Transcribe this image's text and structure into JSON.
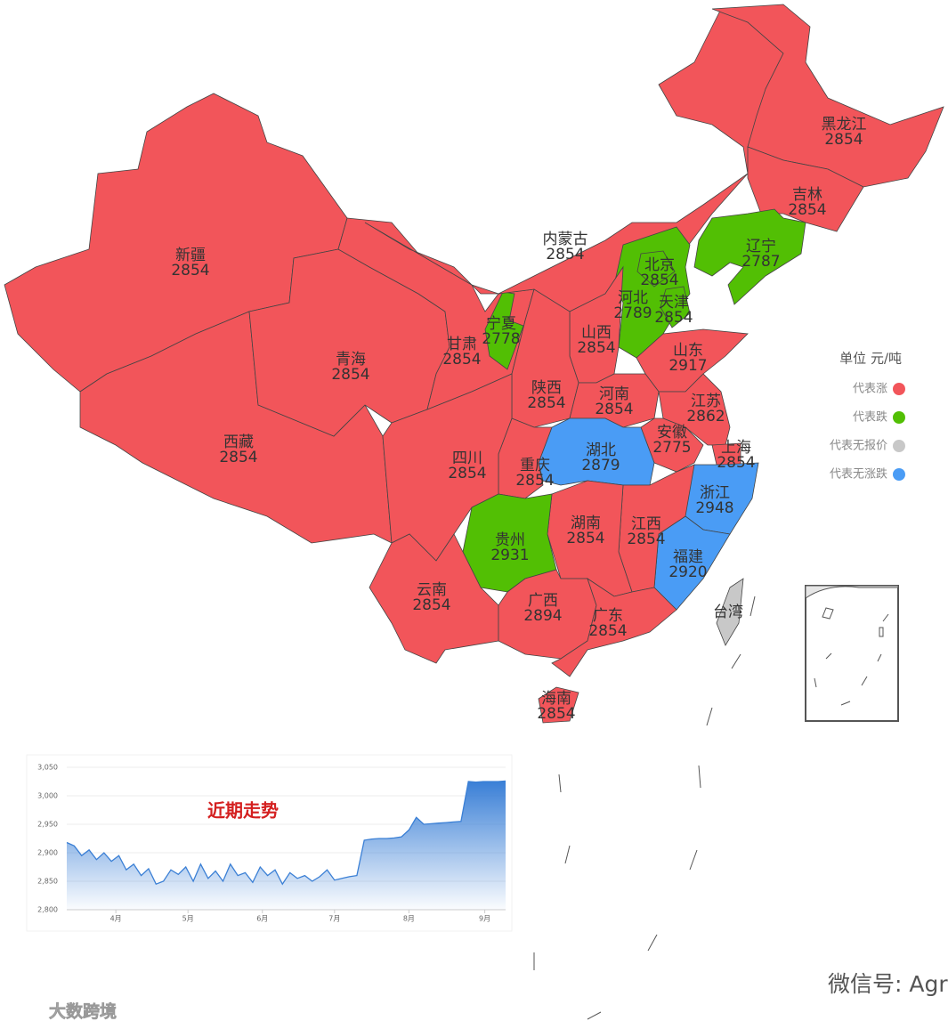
{
  "map": {
    "regions": [
      {
        "name": "新疆",
        "value": 2854,
        "legend": 0
      },
      {
        "name": "西藏",
        "value": 2854,
        "legend": 0
      },
      {
        "name": "青海",
        "value": 2854,
        "legend": 0
      },
      {
        "name": "甘肃",
        "value": 2854,
        "legend": 0
      },
      {
        "name": "宁夏",
        "value": 2778,
        "legend": 1
      },
      {
        "name": "内蒙古",
        "value": 2854,
        "legend": 0
      },
      {
        "name": "黑龙江",
        "value": 2854,
        "legend": 0
      },
      {
        "name": "吉林",
        "value": 2854,
        "legend": 0
      },
      {
        "name": "辽宁",
        "value": 2787,
        "legend": 1
      },
      {
        "name": "河北",
        "value": 2789,
        "legend": 1
      },
      {
        "name": "北京",
        "value": 2854,
        "legend": 1
      },
      {
        "name": "天津",
        "value": 2854,
        "legend": 1
      },
      {
        "name": "山西",
        "value": 2854,
        "legend": 0
      },
      {
        "name": "山东",
        "value": 2917,
        "legend": 0
      },
      {
        "name": "陕西",
        "value": 2854,
        "legend": 0
      },
      {
        "name": "河南",
        "value": 2854,
        "legend": 0
      },
      {
        "name": "江苏",
        "value": 2862,
        "legend": 0
      },
      {
        "name": "安徽",
        "value": 2775,
        "legend": 0
      },
      {
        "name": "上海",
        "value": 2854,
        "legend": 0
      },
      {
        "name": "湖北",
        "value": 2879,
        "legend": 3
      },
      {
        "name": "重庆",
        "value": 2854,
        "legend": 0
      },
      {
        "name": "四川",
        "value": 2854,
        "legend": 0
      },
      {
        "name": "浙江",
        "value": 2948,
        "legend": 3
      },
      {
        "name": "福建",
        "value": 2920,
        "legend": 3
      },
      {
        "name": "江西",
        "value": 2854,
        "legend": 0
      },
      {
        "name": "湖南",
        "value": 2854,
        "legend": 0
      },
      {
        "name": "贵州",
        "value": 2931,
        "legend": 1
      },
      {
        "name": "云南",
        "value": 2854,
        "legend": 0
      },
      {
        "name": "广西",
        "value": 2894,
        "legend": 0
      },
      {
        "name": "广东",
        "value": 2854,
        "legend": 0
      },
      {
        "name": "海南",
        "value": 2854,
        "legend": 0
      },
      {
        "name": "台湾",
        "legend": 2
      }
    ],
    "legend": {
      "title": "单位 元/吨",
      "items": [
        {
          "label": "代表涨",
          "color": "#f2555a"
        },
        {
          "label": "代表跌",
          "color": "#52bf04"
        },
        {
          "label": "代表无报价",
          "color": "#c8c8c8"
        },
        {
          "label": "代表无涨跌",
          "color": "#4a9cf5"
        }
      ]
    }
  },
  "chart_data": {
    "type": "area",
    "title": "近期走势",
    "color": "#3a7fd5",
    "values": [
      2918,
      2912,
      2895,
      2905,
      2888,
      2900,
      2885,
      2895,
      2870,
      2880,
      2860,
      2872,
      2845,
      2850,
      2870,
      2862,
      2875,
      2850,
      2880,
      2855,
      2868,
      2850,
      2880,
      2860,
      2865,
      2848,
      2875,
      2860,
      2870,
      2845,
      2865,
      2855,
      2860,
      2850,
      2858,
      2870,
      2852,
      2855,
      2858,
      2860,
      2922,
      2924,
      2925,
      2925,
      2926,
      2928,
      2940,
      2962,
      2950,
      2951,
      2952,
      2953,
      2954,
      2955,
      3025,
      3024,
      3025,
      3025,
      3025,
      3026
    ],
    "xlim": [
      0,
      59
    ],
    "xticks": [
      {
        "value": 6.6,
        "label": "4月"
      },
      {
        "value": 16.3,
        "label": "5月"
      },
      {
        "value": 26.3,
        "label": "6月"
      },
      {
        "value": 36,
        "label": "7月"
      },
      {
        "value": 46,
        "label": "8月"
      },
      {
        "value": 56.2,
        "label": "9月"
      }
    ],
    "ylim": [
      2800,
      3050
    ],
    "yticks": [
      {
        "value": 2800,
        "label": "2,800"
      },
      {
        "value": 2850,
        "label": "2,850"
      },
      {
        "value": 2900,
        "label": "2,900"
      },
      {
        "value": 2950,
        "label": "2,950"
      },
      {
        "value": 3000,
        "label": "3,000"
      },
      {
        "value": 3050,
        "label": "3,050"
      }
    ]
  },
  "watermarks": [
    "微信号: Agrobate",
    "大数跨境"
  ]
}
